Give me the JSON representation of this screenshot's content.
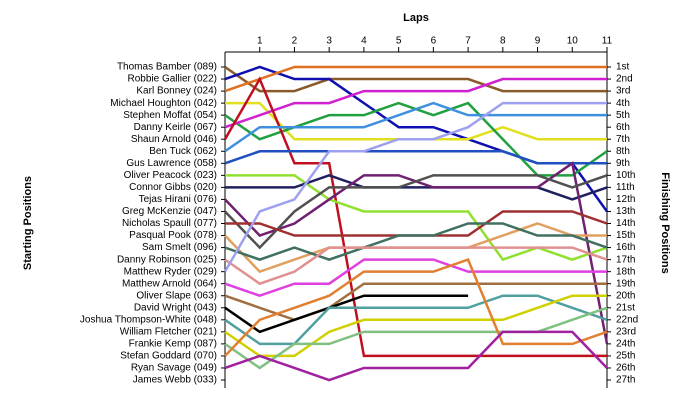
{
  "chart_data": {
    "type": "line",
    "title": "Laps",
    "y_label_left": "Starting Positions",
    "y_label_right": "Finishing Positions",
    "x": [
      0,
      1,
      2,
      3,
      4,
      5,
      6,
      7,
      8,
      9,
      10,
      11
    ],
    "xlim": [
      0,
      11
    ],
    "xticks": [
      1,
      2,
      3,
      4,
      5,
      6,
      7,
      8,
      9,
      10,
      11
    ],
    "ylim": [
      1,
      27
    ],
    "yticks": [
      {
        "value": 1,
        "label": "1st"
      },
      {
        "value": 2,
        "label": "2nd"
      },
      {
        "value": 3,
        "label": "3rd"
      },
      {
        "value": 4,
        "label": "4th"
      },
      {
        "value": 5,
        "label": "5th"
      },
      {
        "value": 6,
        "label": "6th"
      },
      {
        "value": 7,
        "label": "7th"
      },
      {
        "value": 8,
        "label": "8th"
      },
      {
        "value": 9,
        "label": "9th"
      },
      {
        "value": 10,
        "label": "10th"
      },
      {
        "value": 11,
        "label": "11th"
      },
      {
        "value": 12,
        "label": "12th"
      },
      {
        "value": 13,
        "label": "13th"
      },
      {
        "value": 14,
        "label": "14th"
      },
      {
        "value": 15,
        "label": "15th"
      },
      {
        "value": 16,
        "label": "16th"
      },
      {
        "value": 17,
        "label": "17th"
      },
      {
        "value": 18,
        "label": "18th"
      },
      {
        "value": 19,
        "label": "19th"
      },
      {
        "value": 20,
        "label": "20th"
      },
      {
        "value": 21,
        "label": "21st"
      },
      {
        "value": 22,
        "label": "22nd"
      },
      {
        "value": 23,
        "label": "23rd"
      },
      {
        "value": 24,
        "label": "24th"
      },
      {
        "value": 25,
        "label": "25th"
      },
      {
        "value": 26,
        "label": "26th"
      },
      {
        "value": 27,
        "label": "27th"
      }
    ],
    "series": [
      {
        "name": "Thomas Bamber (089)",
        "color": "#8b5a2b",
        "values": [
          1,
          3,
          3,
          2,
          2,
          2,
          2,
          2,
          3,
          3,
          3,
          3
        ]
      },
      {
        "name": "Robbie Gallier (022)",
        "color": "#1010b0",
        "values": [
          2,
          1,
          2,
          2,
          4,
          6,
          6,
          7,
          8,
          9,
          9,
          13
        ]
      },
      {
        "name": "Karl Bonney (024)",
        "color": "#e07020",
        "values": [
          3,
          2,
          1,
          1,
          1,
          1,
          1,
          1,
          1,
          1,
          1,
          1
        ]
      },
      {
        "name": "Michael Houghton (042)",
        "color": "#e0e020",
        "values": [
          4,
          4,
          7,
          7,
          7,
          7,
          7,
          7,
          6,
          7,
          7,
          7
        ]
      },
      {
        "name": "Stephen Moffat (054)",
        "color": "#20a040",
        "values": [
          5,
          7,
          6,
          5,
          5,
          4,
          5,
          4,
          7,
          10,
          10,
          8
        ]
      },
      {
        "name": "Danny Keirle (067)",
        "color": "#d020d0",
        "values": [
          6,
          5,
          4,
          4,
          3,
          3,
          3,
          3,
          2,
          2,
          2,
          2
        ]
      },
      {
        "name": "Shaun Arnold (046)",
        "color": "#c01020",
        "values": [
          7,
          2,
          9,
          9,
          25,
          25,
          25,
          25,
          25,
          25,
          25,
          25
        ]
      },
      {
        "name": "Ben Tuck (062)",
        "color": "#4090e0",
        "values": [
          8,
          6,
          6,
          6,
          6,
          5,
          4,
          5,
          5,
          5,
          5,
          5
        ]
      },
      {
        "name": "Gus Lawrence (058)",
        "color": "#2050c0",
        "values": [
          9,
          8,
          8,
          8,
          8,
          8,
          8,
          8,
          8,
          9,
          9,
          9
        ]
      },
      {
        "name": "Oliver Peacock (023)",
        "color": "#90e030",
        "values": [
          10,
          10,
          10,
          12,
          13,
          13,
          13,
          13,
          17,
          16,
          17,
          16
        ]
      },
      {
        "name": "Connor Gibbs (020)",
        "color": "#202060",
        "values": [
          11,
          11,
          11,
          10,
          11,
          11,
          11,
          11,
          11,
          11,
          12,
          11
        ]
      },
      {
        "name": "Tejas Hirani (076)",
        "color": "#702070",
        "values": [
          12,
          15,
          14,
          12,
          10,
          10,
          11,
          11,
          11,
          11,
          9,
          24
        ]
      },
      {
        "name": "Greg McKenzie (047)",
        "color": "#505050",
        "values": [
          13,
          16,
          13,
          11,
          11,
          11,
          10,
          10,
          10,
          10,
          11,
          10
        ]
      },
      {
        "name": "Nicholas Spaull (077)",
        "color": "#a03030",
        "values": [
          14,
          14,
          15,
          15,
          15,
          15,
          15,
          15,
          13,
          13,
          13,
          14
        ]
      },
      {
        "name": "Pasqual Pook (078)",
        "color": "#e0a060",
        "values": [
          15,
          18,
          17,
          16,
          16,
          16,
          16,
          16,
          15,
          14,
          15,
          15
        ]
      },
      {
        "name": "Sam Smelt (096)",
        "color": "#407060",
        "values": [
          16,
          17,
          16,
          17,
          16,
          15,
          15,
          14,
          14,
          15,
          15,
          16
        ]
      },
      {
        "name": "Danny Robinson (025)",
        "color": "#e09090",
        "values": [
          17,
          19,
          18,
          16,
          16,
          16,
          16,
          16,
          16,
          16,
          16,
          17
        ]
      },
      {
        "name": "Matthew Ryder (029)",
        "color": "#a0a0f0",
        "values": [
          18,
          13,
          12,
          8,
          8,
          7,
          7,
          6,
          4,
          4,
          4,
          4
        ]
      },
      {
        "name": "Matthew Arnold (064)",
        "color": "#e040e0",
        "values": [
          19,
          20,
          19,
          19,
          17,
          17,
          17,
          18,
          18,
          18,
          18,
          18
        ]
      },
      {
        "name": "Oliver Slape (063)",
        "color": "#a07040",
        "values": [
          20,
          21,
          22,
          21,
          19,
          19,
          19,
          19,
          19,
          19,
          19,
          19
        ]
      },
      {
        "name": "David Wright (043)",
        "color": "#000000",
        "values": [
          21,
          23,
          22,
          21,
          20,
          20,
          20,
          20,
          null,
          null,
          null,
          null
        ]
      },
      {
        "name": "Joshua Thompson-White (048)",
        "color": "#50a0a0",
        "values": [
          22,
          24,
          24,
          21,
          21,
          21,
          21,
          21,
          20,
          20,
          21,
          22
        ]
      },
      {
        "name": "William Fletcher (021)",
        "color": "#d0d000",
        "values": [
          23,
          25,
          25,
          23,
          22,
          22,
          22,
          22,
          22,
          21,
          20,
          20
        ]
      },
      {
        "name": "Frankie Kemp (087)",
        "color": "#80c080",
        "values": [
          24,
          26,
          24,
          24,
          23,
          23,
          23,
          23,
          23,
          23,
          22,
          21
        ]
      },
      {
        "name": "Stefan Goddard (070)",
        "color": "#e08030",
        "values": [
          25,
          22,
          21,
          20,
          18,
          18,
          18,
          17,
          24,
          24,
          24,
          23
        ]
      },
      {
        "name": "Ryan Savage (049)",
        "color": "#a020a0",
        "values": [
          26,
          25,
          26,
          27,
          26,
          26,
          26,
          26,
          23,
          23,
          23,
          26
        ]
      },
      {
        "name": "James Webb (033)",
        "color": "#d09030",
        "values": [
          27,
          null,
          null,
          null,
          null,
          null,
          null,
          null,
          null,
          null,
          null,
          null
        ]
      }
    ]
  }
}
